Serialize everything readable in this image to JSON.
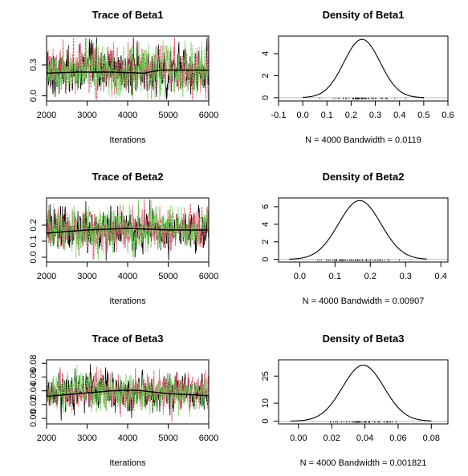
{
  "colors": {
    "chain1": "#000000",
    "chain2": "#df536b",
    "chain3": "#61d04f",
    "axis": "#000000",
    "baseline": "#bebebe"
  },
  "chart_data": [
    {
      "type": "line",
      "kind": "trace",
      "param": "Beta1",
      "title": "Trace of Beta1",
      "xlabel": "Iterations",
      "xlim": [
        2000,
        6000
      ],
      "ylim": [
        -0.05,
        0.58
      ],
      "xticks": [
        2000,
        3000,
        4000,
        5000,
        6000
      ],
      "xtick_labels": [
        "2000",
        "3000",
        "4000",
        "5000",
        "6000"
      ],
      "yticks": [
        0.0,
        0.3
      ],
      "ytick_labels": [
        "0.0",
        "0.3"
      ],
      "chains": 3,
      "center": 0.24,
      "sd": 0.11,
      "running_mean": {
        "x": [
          2000,
          2800,
          3600,
          4400,
          4800,
          5200,
          6000
        ],
        "y": [
          0.22,
          0.23,
          0.23,
          0.22,
          0.25,
          0.25,
          0.25
        ]
      }
    },
    {
      "type": "line",
      "kind": "density",
      "param": "Beta1",
      "title": "Density of Beta1",
      "xlabel": "N = 4000   Bandwidth = 0.0119",
      "xlim": [
        -0.1,
        0.6
      ],
      "ylim": [
        -0.3,
        5.6
      ],
      "xticks": [
        -0.1,
        0.0,
        0.1,
        0.2,
        0.3,
        0.4,
        0.5,
        0.6
      ],
      "xtick_labels": [
        "-0.1",
        "0.0",
        "0.1",
        "0.2",
        "0.3",
        "0.4",
        "0.5",
        "0.6"
      ],
      "yticks": [
        0,
        2,
        4
      ],
      "ytick_labels": [
        "0",
        "2",
        "4"
      ],
      "mean": 0.245,
      "sd": 0.075,
      "peak": 5.3,
      "support": [
        0.0,
        0.5
      ]
    },
    {
      "type": "line",
      "kind": "trace",
      "param": "Beta2",
      "title": "Trace of Beta2",
      "xlabel": "Iterations",
      "xlim": [
        2000,
        6000
      ],
      "ylim": [
        -0.03,
        0.37
      ],
      "xticks": [
        2000,
        3000,
        4000,
        5000,
        6000
      ],
      "xtick_labels": [
        "2000",
        "3000",
        "4000",
        "5000",
        "6000"
      ],
      "yticks": [
        0.0,
        0.1,
        0.2
      ],
      "ytick_labels": [
        "0.0",
        "0.1",
        "0.2"
      ],
      "chains": 3,
      "center": 0.17,
      "sd": 0.065,
      "running_mean": {
        "x": [
          2000,
          3000,
          4000,
          5000,
          6000
        ],
        "y": [
          0.15,
          0.17,
          0.18,
          0.17,
          0.17
        ]
      }
    },
    {
      "type": "line",
      "kind": "density",
      "param": "Beta2",
      "title": "Density of Beta2",
      "xlabel": "N = 4000   Bandwidth = 0.00907",
      "xlim": [
        -0.06,
        0.42
      ],
      "ylim": [
        -0.3,
        7.0
      ],
      "xticks": [
        0.0,
        0.1,
        0.2,
        0.3,
        0.4
      ],
      "xtick_labels": [
        "0.0",
        "0.1",
        "0.2",
        "0.3",
        "0.4"
      ],
      "yticks": [
        0,
        2,
        4,
        6
      ],
      "ytick_labels": [
        "0",
        "2",
        "4",
        "6"
      ],
      "mean": 0.17,
      "sd": 0.06,
      "peak": 6.7,
      "support": [
        -0.03,
        0.36
      ]
    },
    {
      "type": "line",
      "kind": "trace",
      "param": "Beta3",
      "title": "Trace of Beta3",
      "xlabel": "Iterations",
      "xlim": [
        2000,
        6000
      ],
      "ylim": [
        -0.008,
        0.085
      ],
      "xticks": [
        2000,
        3000,
        4000,
        5000,
        6000
      ],
      "xtick_labels": [
        "2000",
        "3000",
        "4000",
        "5000",
        "6000"
      ],
      "yticks": [
        0.0,
        0.02,
        0.04,
        0.06,
        0.08
      ],
      "ytick_labels": [
        "0.00",
        "0.02",
        "0.04",
        "0.06",
        "0.08"
      ],
      "chains": 3,
      "center": 0.038,
      "sd": 0.013,
      "running_mean": {
        "x": [
          2000,
          3000,
          3600,
          4200,
          5000,
          6000
        ],
        "y": [
          0.032,
          0.037,
          0.04,
          0.041,
          0.036,
          0.033
        ]
      }
    },
    {
      "type": "line",
      "kind": "density",
      "param": "Beta3",
      "title": "Density of Beta3",
      "xlabel": "N = 4000   Bandwidth = 0.001821",
      "xlim": [
        -0.012,
        0.09
      ],
      "ylim": [
        -1.5,
        34
      ],
      "xticks": [
        0.0,
        0.02,
        0.04,
        0.06,
        0.08
      ],
      "xtick_labels": [
        "0.00",
        "0.02",
        "0.04",
        "0.06",
        "0.08"
      ],
      "yticks": [
        0,
        10,
        25
      ],
      "ytick_labels": [
        "0",
        "10",
        "25"
      ],
      "mean": 0.039,
      "sd": 0.0125,
      "peak": 31,
      "support": [
        -0.005,
        0.08
      ]
    }
  ]
}
